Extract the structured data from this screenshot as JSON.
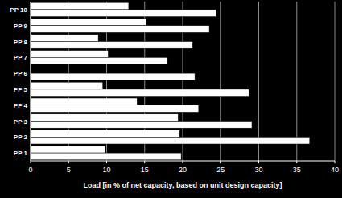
{
  "chart_data": {
    "type": "bar",
    "orientation": "horizontal",
    "xlabel": "Load [in % of net capacity, based on unit design capacity]",
    "categories": [
      "PP 1",
      "PP 2",
      "PP 3",
      "PP 4",
      "PP 5",
      "PP 6",
      "PP 7",
      "PP 8",
      "PP 9",
      "PP 10"
    ],
    "series": [
      {
        "color": "#ffffff",
        "values": [
          9.8,
          19.6,
          19.4,
          14.0,
          9.5,
          null,
          10.2,
          8.9,
          15.2,
          12.9
        ]
      },
      {
        "color": "#ffffff",
        "values": [
          19.8,
          36.7,
          29.1,
          22.1,
          28.7,
          21.6,
          18.0,
          21.3,
          23.5,
          24.4
        ]
      }
    ],
    "xlim": [
      0,
      40
    ],
    "xticks": [
      0,
      5,
      10,
      15,
      20,
      25,
      30,
      35,
      40
    ],
    "grid": true
  }
}
